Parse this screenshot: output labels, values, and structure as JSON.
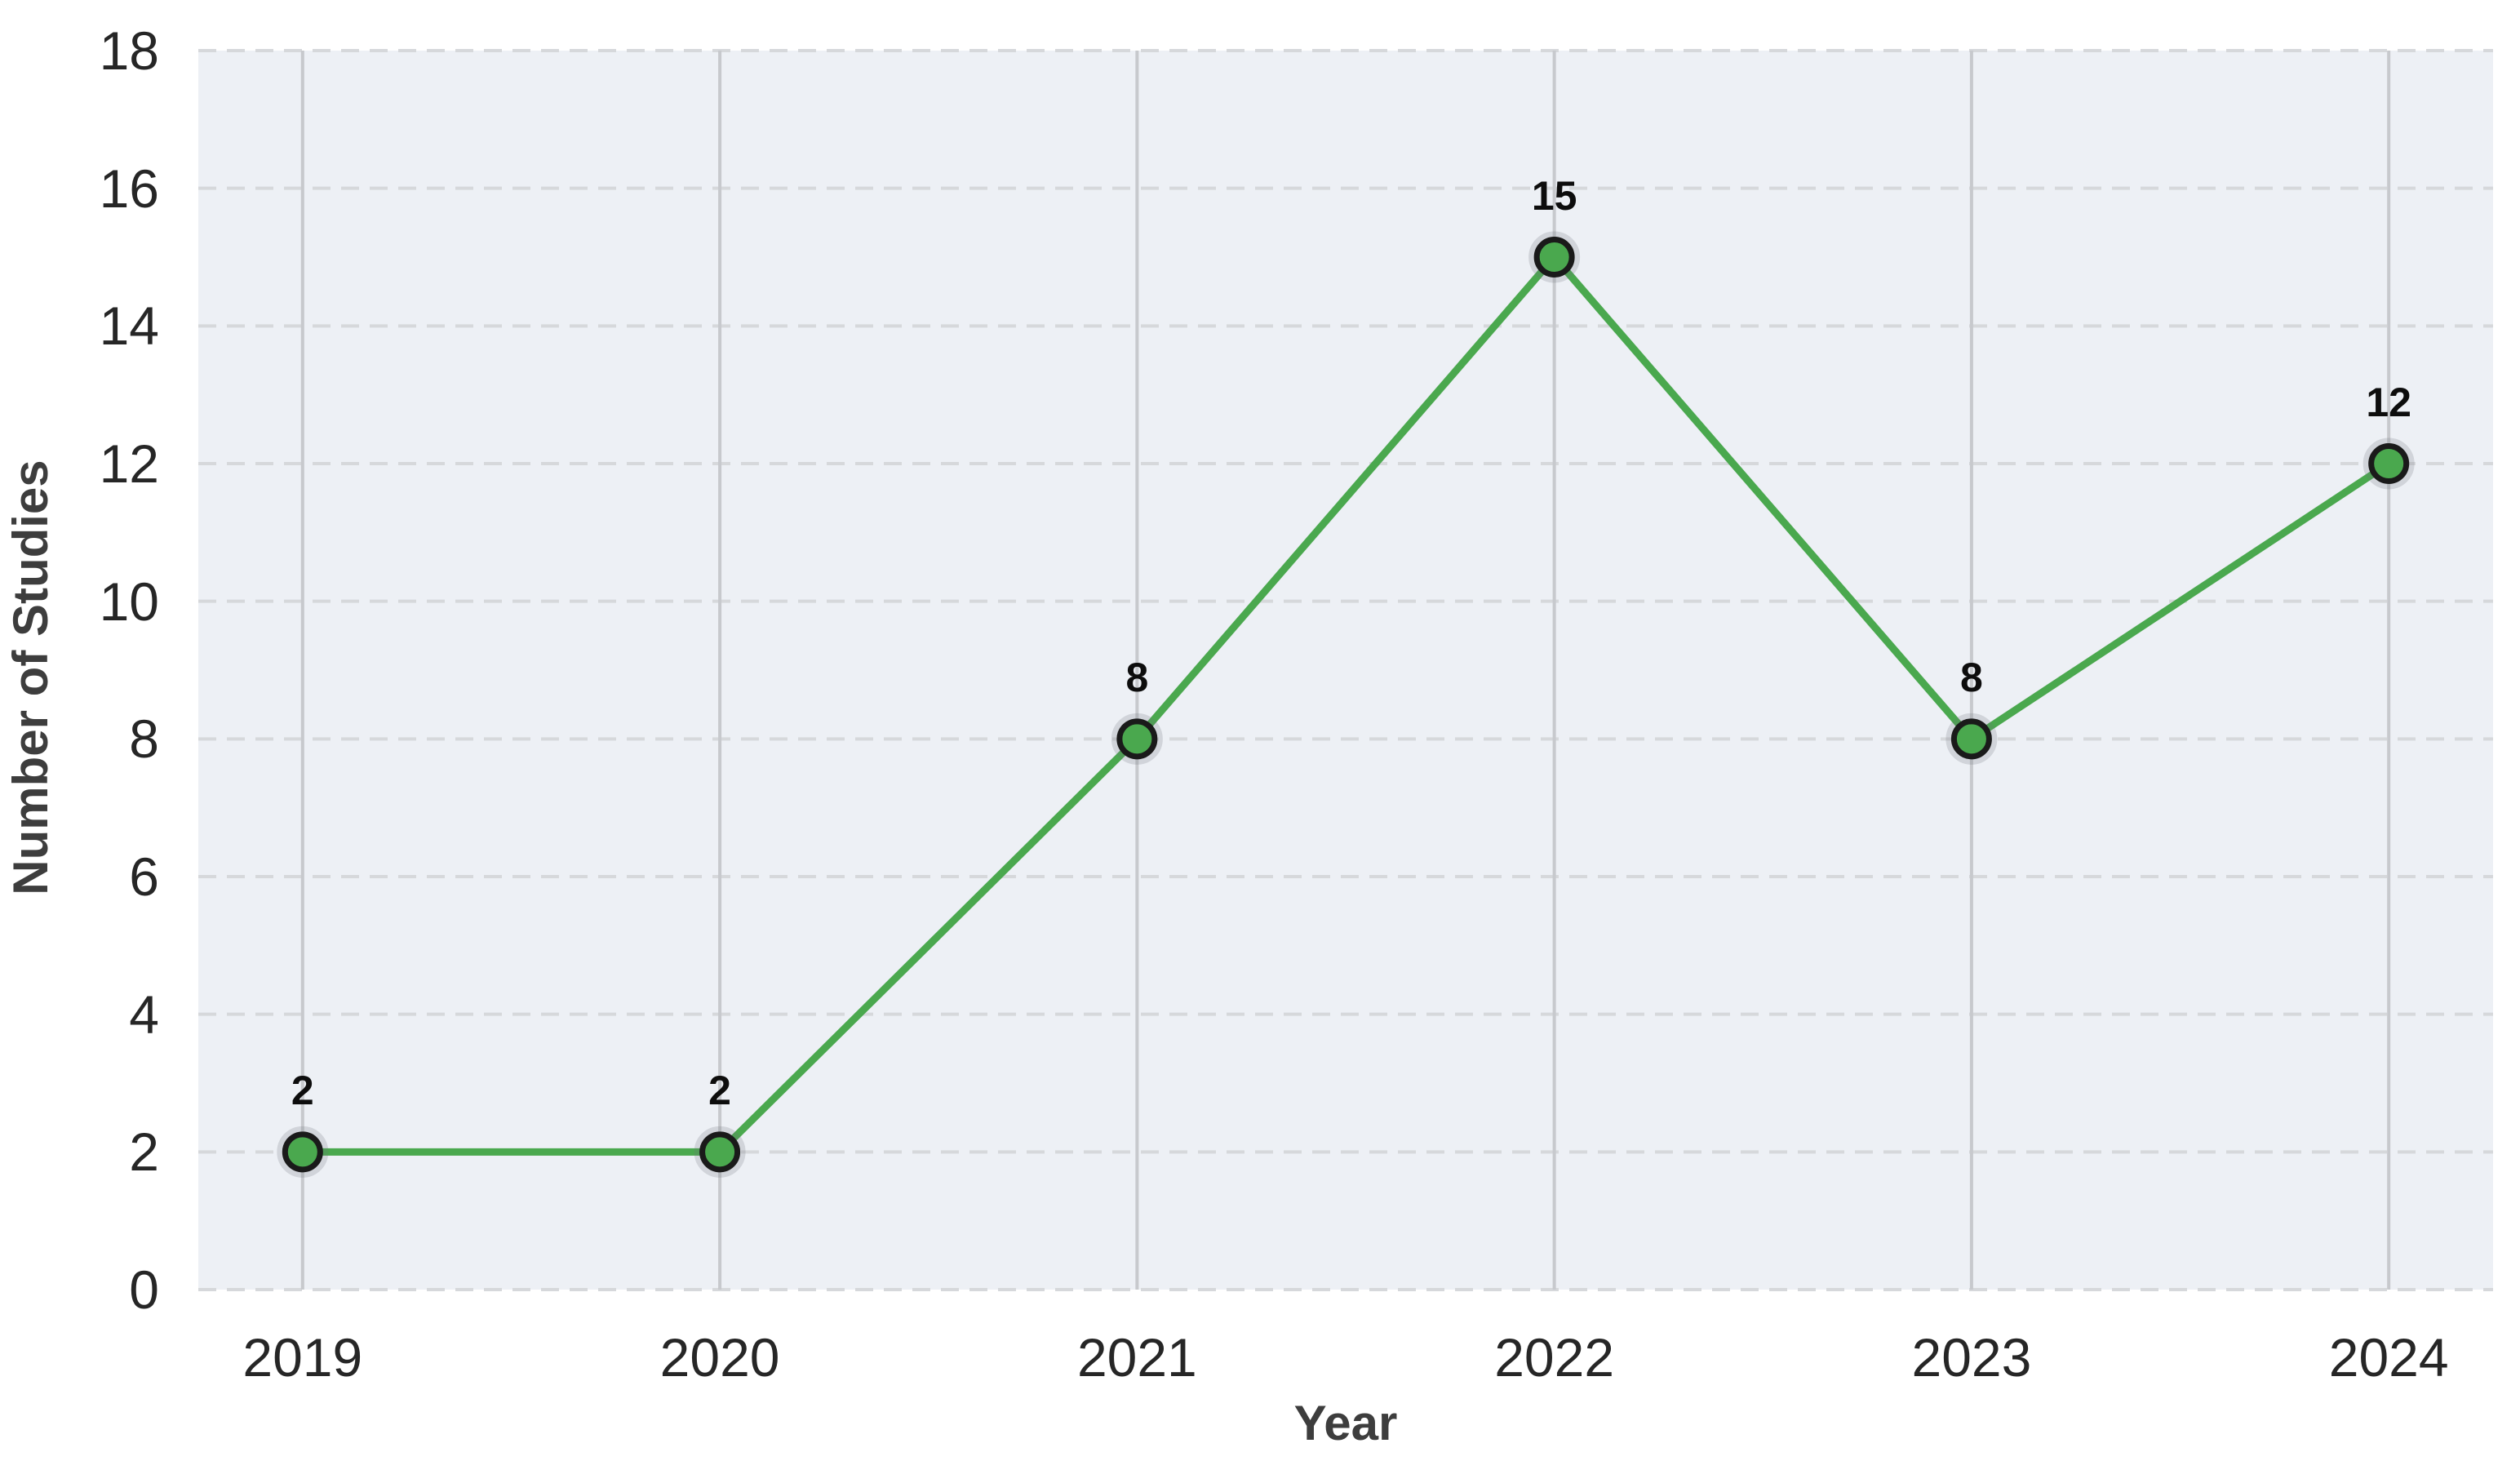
{
  "chart_data": {
    "type": "line",
    "xlabel": "Year",
    "ylabel": "Number of Studies",
    "categories": [
      "2019",
      "2020",
      "2021",
      "2022",
      "2023",
      "2024"
    ],
    "x": [
      2019,
      2020,
      2021,
      2022,
      2023,
      2024
    ],
    "series": [
      {
        "name": "Number of Studies",
        "values": [
          2,
          2,
          8,
          15,
          8,
          12
        ]
      }
    ],
    "data_labels": [
      "2",
      "2",
      "8",
      "15",
      "8",
      "12"
    ],
    "xlim": [
      2018.75,
      2024.25
    ],
    "ylim": [
      0,
      18
    ],
    "y_ticks": [
      0,
      2,
      4,
      6,
      8,
      10,
      12,
      14,
      16,
      18
    ],
    "y_tick_labels": [
      "0",
      "2",
      "4",
      "6",
      "8",
      "10",
      "12",
      "14",
      "16",
      "18"
    ],
    "x_ticks": [
      2019,
      2020,
      2021,
      2022,
      2023,
      2024
    ],
    "grid": {
      "horizontal": "dashed",
      "vertical": "solid"
    },
    "legend": "none",
    "colors": {
      "line": "#4aa84e",
      "marker_fill": "#4aa84e",
      "marker_edge": "#1a1a1a",
      "marker_halo": "rgba(110,115,125,0.22)",
      "plot_bg": "#edf0f5",
      "grid_horizontal": "#d6d8db",
      "grid_vertical": "#c7c9cd",
      "tick_text": "#262626",
      "axis_label_text": "#3d3d3d",
      "data_label_text": "#0d0d0d"
    }
  }
}
